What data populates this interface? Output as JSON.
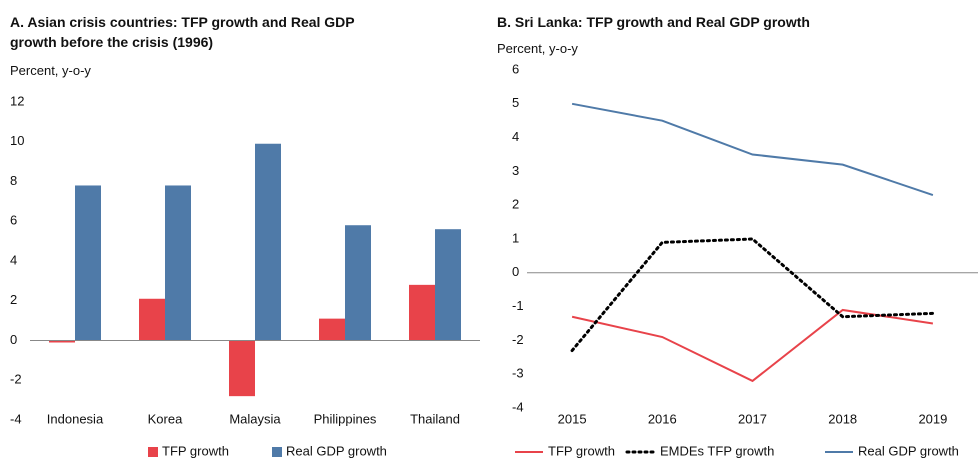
{
  "chart_data": [
    {
      "type": "bar",
      "title": "A. Asian crisis countries: TFP growth and Real GDP growth before the crisis (1996)",
      "subtitle": "Percent, y-o-y",
      "categories": [
        "Indonesia",
        "Korea",
        "Malaysia",
        "Philippines",
        "Thailand"
      ],
      "series": [
        {
          "name": "TFP growth",
          "color": "#e8434a",
          "values": [
            -0.1,
            2.1,
            -2.8,
            1.1,
            2.8
          ]
        },
        {
          "name": "Real GDP growth",
          "color": "#4f7aa8",
          "values": [
            7.8,
            7.8,
            9.9,
            5.8,
            5.6
          ]
        }
      ],
      "ylim": [
        -4,
        12
      ],
      "yticks": [
        -4,
        -2,
        0,
        2,
        4,
        6,
        8,
        10,
        12
      ],
      "grid": false,
      "legend": "bottom"
    },
    {
      "type": "line",
      "title": "B. Sri Lanka: TFP growth and Real GDP growth",
      "subtitle": "Percent, y-o-y",
      "categories": [
        "2015",
        "2016",
        "2017",
        "2018",
        "2019"
      ],
      "series": [
        {
          "name": "TFP growth",
          "color": "#e8434a",
          "style": "solid",
          "values": [
            -1.3,
            -1.9,
            -3.2,
            -1.1,
            -1.5
          ]
        },
        {
          "name": "EMDEs TFP growth",
          "color": "#000000",
          "style": "dotted",
          "values": [
            -2.3,
            0.9,
            1.0,
            -1.3,
            -1.2
          ]
        },
        {
          "name": "Real GDP growth",
          "color": "#4f7aa8",
          "style": "solid",
          "values": [
            5.0,
            4.5,
            3.5,
            3.2,
            2.3
          ]
        }
      ],
      "ylim": [
        -4,
        6
      ],
      "yticks": [
        -4,
        -3,
        -2,
        -1,
        0,
        1,
        2,
        3,
        4,
        5,
        6
      ],
      "grid": false,
      "legend": "bottom"
    }
  ]
}
